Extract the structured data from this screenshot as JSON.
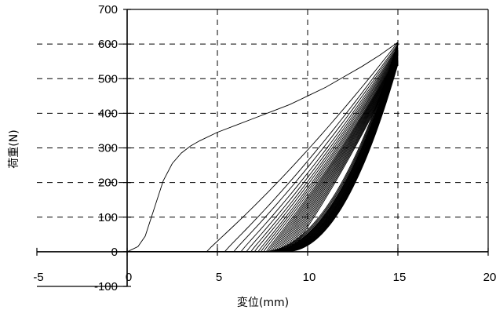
{
  "chart_data": {
    "type": "line",
    "xlabel": "変位(mm)",
    "ylabel": "荷重(N)",
    "xlim": [
      -5,
      20
    ],
    "ylim": [
      -100,
      700
    ],
    "xticks": [
      -5,
      0,
      5,
      10,
      15,
      20
    ],
    "yticks": [
      -100,
      0,
      100,
      200,
      300,
      400,
      500,
      600,
      700
    ],
    "x_tick_labels": [
      "-5",
      "0",
      "5",
      "10",
      "15",
      "20"
    ],
    "y_tick_labels": [
      "-100",
      "0",
      "100",
      "200",
      "300",
      "400",
      "500",
      "600",
      "700"
    ],
    "grid": true,
    "legend": "none",
    "loading_curve_first_cycle": {
      "x": [
        0,
        0.2,
        0.6,
        1.0,
        1.5,
        2.0,
        2.5,
        3.0,
        3.5,
        4.0,
        5.0,
        6.0,
        7.0,
        8.0,
        9.0,
        10.0,
        11.0,
        12.0,
        13.0,
        14.0,
        15.0
      ],
      "y": [
        0,
        5,
        15,
        45,
        125,
        205,
        255,
        285,
        305,
        320,
        345,
        365,
        385,
        405,
        425,
        450,
        475,
        505,
        535,
        568,
        605
      ]
    },
    "loading_curves_repeated_cycles": {
      "count": 25,
      "start_x": [
        4.4,
        5.4,
        5.9,
        6.3,
        6.6,
        6.85,
        7.05,
        7.25,
        7.4,
        7.55,
        7.7,
        7.8,
        7.9,
        8.0,
        8.1,
        8.2,
        8.3,
        8.4,
        8.5,
        8.6,
        8.7,
        8.8,
        8.9,
        9.0,
        9.1
      ],
      "end_x": 15,
      "end_y": [
        605,
        600,
        596,
        592,
        589,
        586,
        583,
        580,
        577,
        574,
        571,
        568,
        566,
        564,
        562,
        560,
        558,
        556,
        554,
        552,
        550,
        548,
        546,
        544,
        542
      ]
    },
    "unloading_curves": {
      "count": 25,
      "start_x": 15,
      "end_x": [
        7.4,
        7.5,
        7.6,
        7.7,
        7.75,
        7.8,
        7.85,
        7.9,
        7.95,
        8.0,
        8.05,
        8.1,
        8.15,
        8.2,
        8.25,
        8.3,
        8.35,
        8.4,
        8.45,
        8.5,
        8.55,
        8.6,
        8.65,
        8.7,
        8.75
      ]
    }
  }
}
